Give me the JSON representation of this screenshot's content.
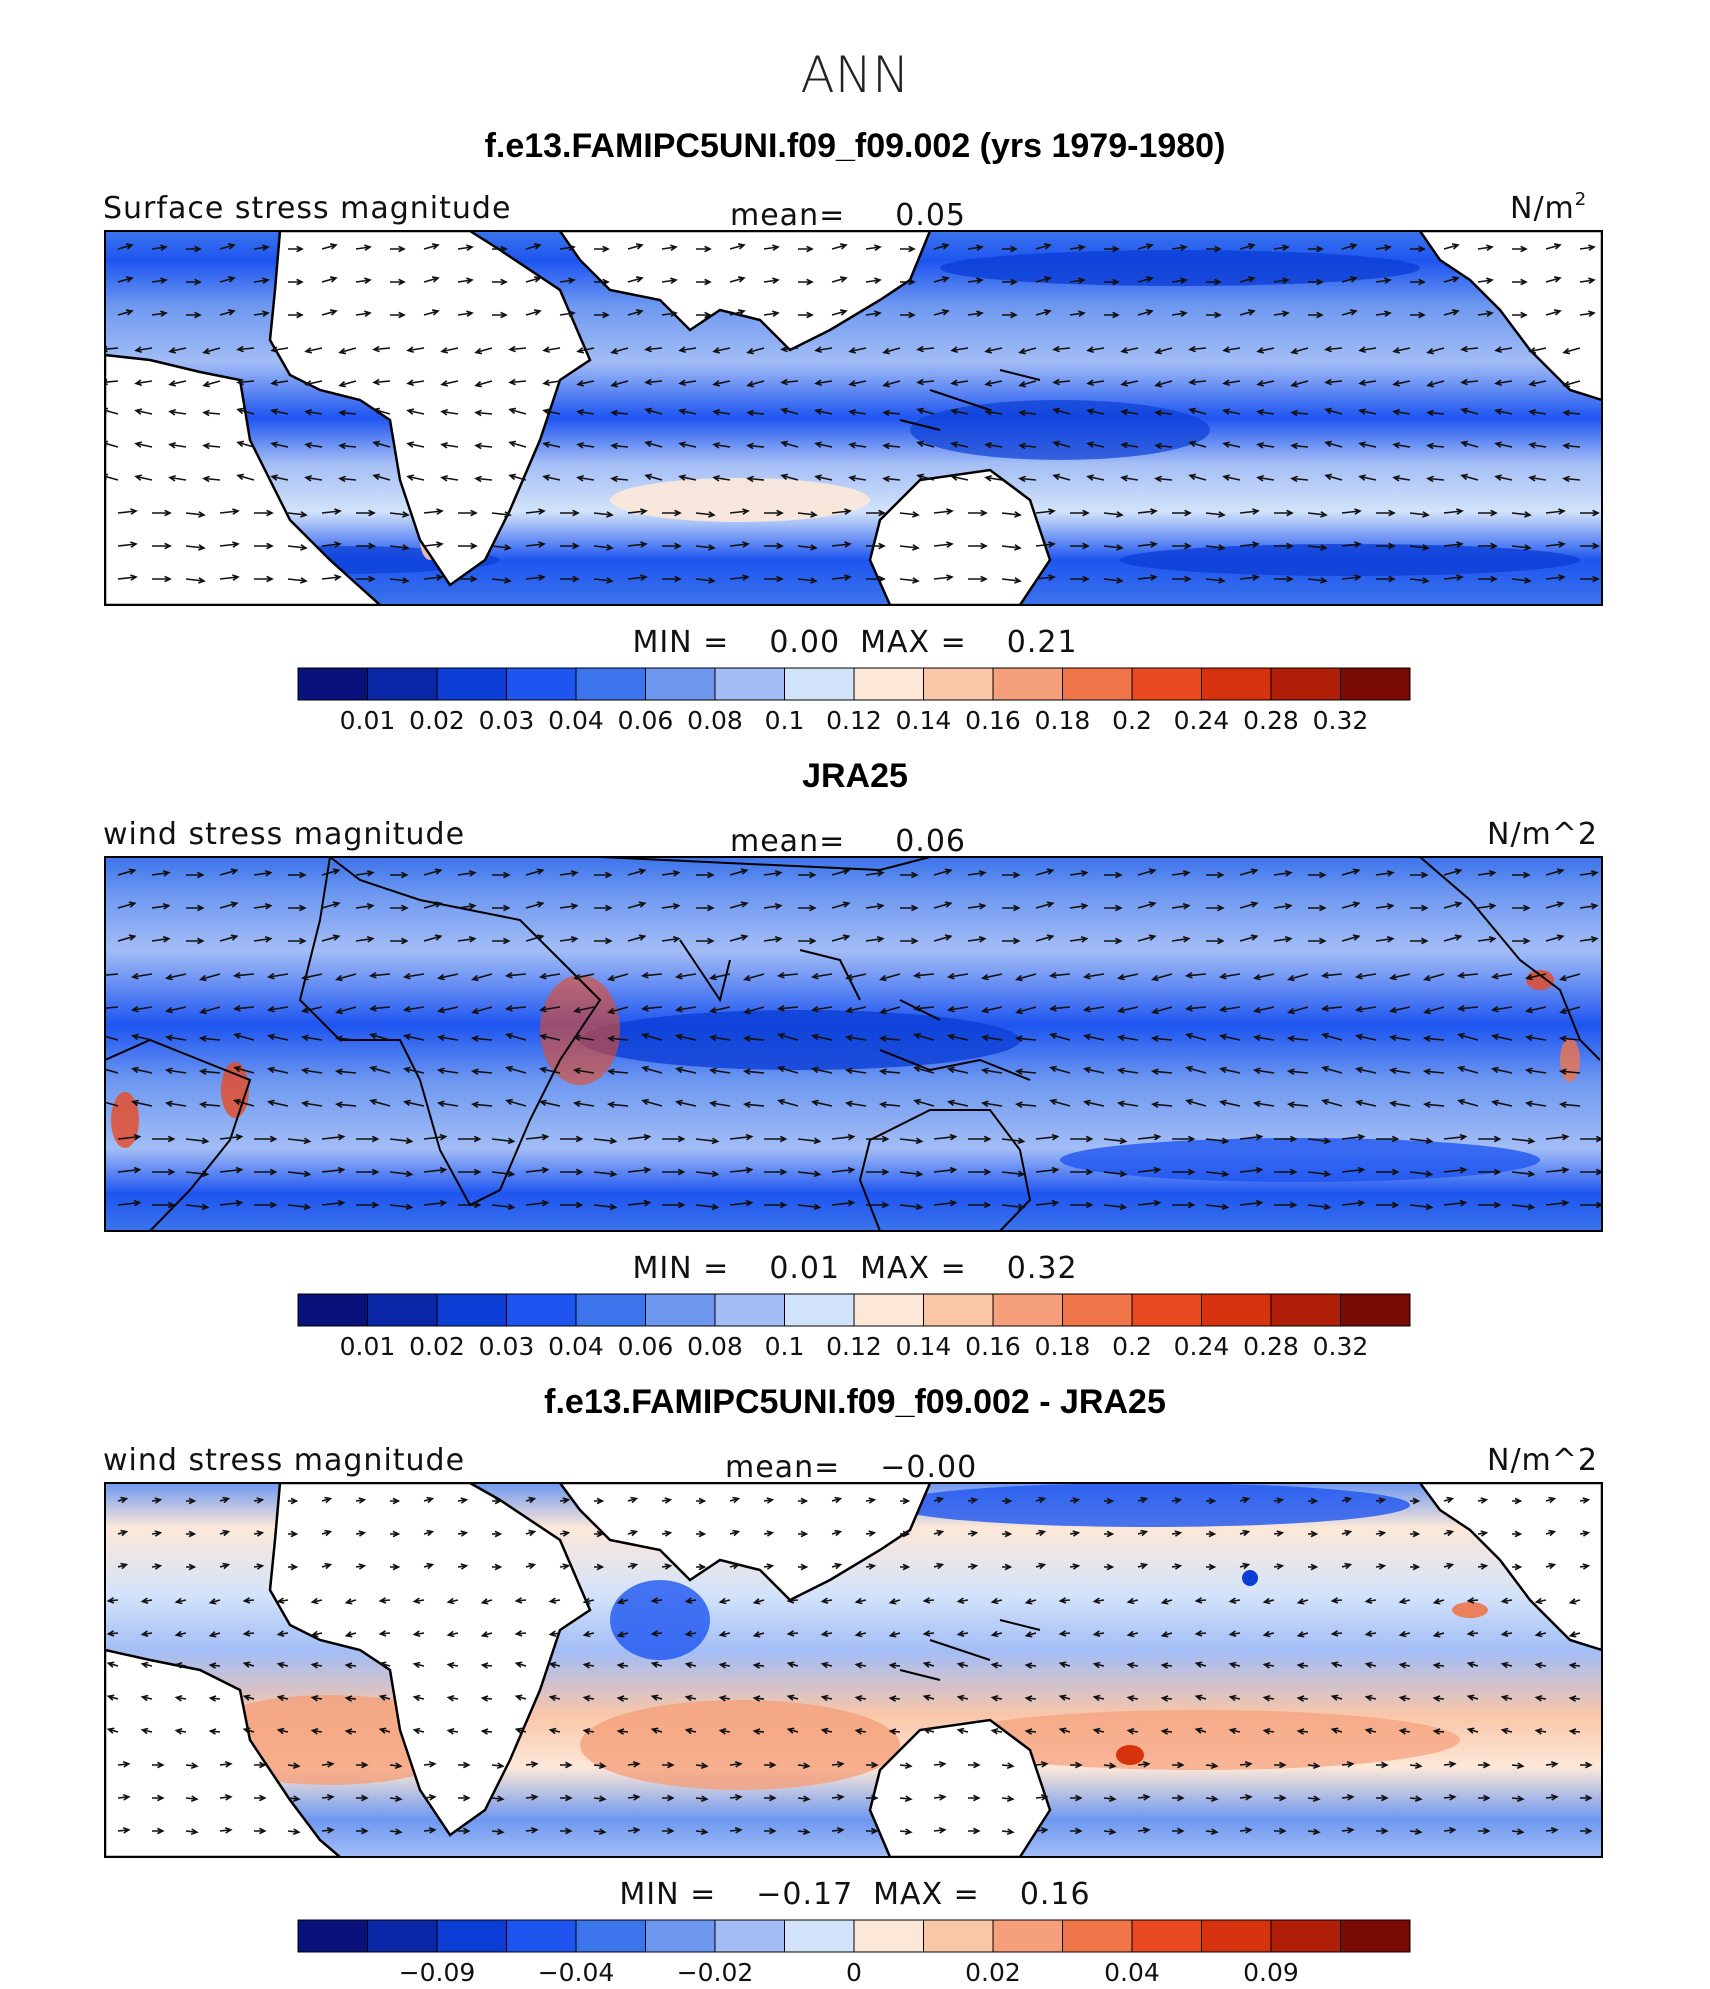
{
  "title": "ANN",
  "panels": [
    {
      "case_title": "f.e13.FAMIPC5UNI.f09_f09.002 (yrs 1979-1980)",
      "field_label": "Surface stress magnitude",
      "mean_label": "mean=",
      "mean_value": "0.05",
      "units_base": "N/m",
      "units_sup": "2",
      "min_label": "MIN =",
      "min_value": "0.00",
      "max_label": "MAX =",
      "max_value": "0.21",
      "colorbar_ticks": [
        "0.01",
        "0.02",
        "0.03",
        "0.04",
        "0.06",
        "0.08",
        "0.1",
        "0.12",
        "0.14",
        "0.16",
        "0.18",
        "0.2",
        "0.24",
        "0.28",
        "0.32"
      ],
      "colorbar_colors": [
        "#08127a",
        "#0a27a8",
        "#0c3ed6",
        "#1e55f0",
        "#3c74ec",
        "#6e98f0",
        "#a3bdf6",
        "#d3e3fa",
        "#fde8d8",
        "#f9c6a8",
        "#f5a07a",
        "#f0764a",
        "#ea4a20",
        "#d6320e",
        "#b01e08",
        "#7a0a04"
      ]
    },
    {
      "case_title": "JRA25",
      "field_label": "wind stress magnitude",
      "mean_label": "mean=",
      "mean_value": "0.06",
      "units_base": "N/m^2",
      "units_sup": "",
      "min_label": "MIN =",
      "min_value": "0.01",
      "max_label": "MAX =",
      "max_value": "0.32",
      "colorbar_ticks": [
        "0.01",
        "0.02",
        "0.03",
        "0.04",
        "0.06",
        "0.08",
        "0.1",
        "0.12",
        "0.14",
        "0.16",
        "0.18",
        "0.2",
        "0.24",
        "0.28",
        "0.32"
      ],
      "colorbar_colors": [
        "#08127a",
        "#0a27a8",
        "#0c3ed6",
        "#1e55f0",
        "#3c74ec",
        "#6e98f0",
        "#a3bdf6",
        "#d3e3fa",
        "#fde8d8",
        "#f9c6a8",
        "#f5a07a",
        "#f0764a",
        "#ea4a20",
        "#d6320e",
        "#b01e08",
        "#7a0a04"
      ]
    },
    {
      "case_title": "f.e13.FAMIPC5UNI.f09_f09.002 - JRA25",
      "field_label": "wind stress magnitude",
      "mean_label": "mean=",
      "mean_value": "−0.00",
      "units_base": "N/m^2",
      "units_sup": "",
      "min_label": "MIN =",
      "min_value": "−0.17",
      "max_label": "MAX =",
      "max_value": "0.16",
      "colorbar_ticks": [
        "−0.09",
        "−0.04",
        "−0.02",
        "0",
        "0.02",
        "0.04",
        "0.09"
      ],
      "colorbar_colors": [
        "#08127a",
        "#0a27a8",
        "#0c3ed6",
        "#1e55f0",
        "#3c74ec",
        "#6e98f0",
        "#a3bdf6",
        "#d3e3fa",
        "#fde8d8",
        "#f9c6a8",
        "#f5a07a",
        "#f0764a",
        "#ea4a20",
        "#d6320e",
        "#b01e08",
        "#7a0a04"
      ]
    }
  ],
  "colors": {
    "deep_blue": "#0c3ed6",
    "mid_blue": "#3c74ec",
    "light_blue": "#a3bdf6",
    "pale_blue": "#d3e3fa",
    "pale_orange": "#fde8d8",
    "orange": "#f5a07a",
    "red": "#ea4a20"
  }
}
